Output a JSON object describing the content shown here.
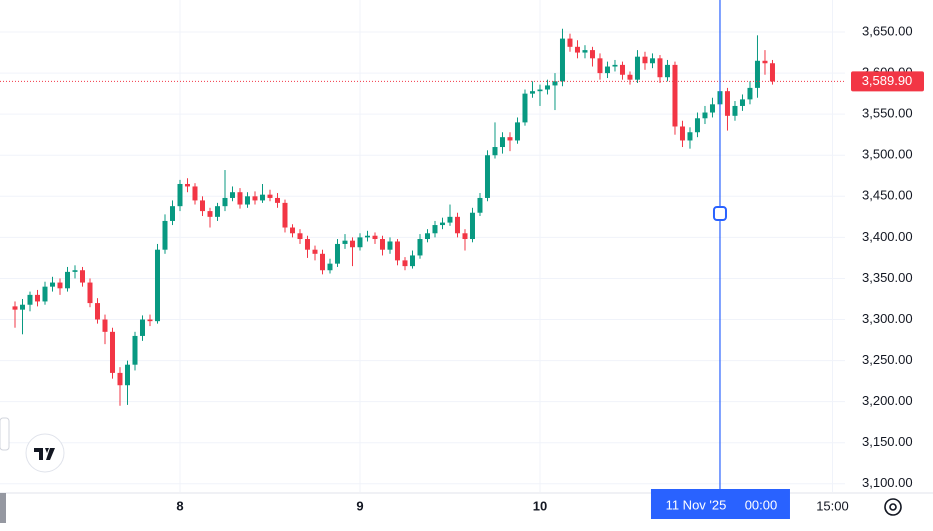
{
  "chart_data": {
    "type": "candlestick",
    "x": [
      2,
      3,
      4,
      5,
      6,
      7,
      8,
      9,
      10,
      11,
      12,
      13,
      14,
      15,
      16,
      17,
      18,
      19,
      20,
      21,
      22,
      23,
      24,
      25,
      26,
      27,
      28,
      29,
      30,
      31,
      32,
      33,
      34,
      35,
      36,
      37,
      38,
      39,
      40,
      41,
      42,
      43,
      44,
      45,
      46,
      47,
      48,
      49,
      50,
      51,
      52,
      53,
      54,
      55,
      56,
      57,
      58,
      59,
      60,
      61,
      62,
      63,
      64,
      65,
      66,
      67,
      68,
      69,
      70,
      71,
      72,
      73,
      74,
      75,
      76,
      77,
      78,
      79,
      80,
      81,
      82,
      83,
      84,
      85,
      86,
      87,
      88,
      89,
      90,
      91,
      92,
      93,
      94,
      95,
      96,
      97,
      98,
      99,
      100,
      101,
      102,
      103
    ],
    "ohlc": [
      [
        3316,
        3322,
        3290,
        3312
      ],
      [
        3312,
        3325,
        3282,
        3318
      ],
      [
        3318,
        3334,
        3310,
        3330
      ],
      [
        3330,
        3336,
        3316,
        3322
      ],
      [
        3322,
        3346,
        3318,
        3340
      ],
      [
        3340,
        3352,
        3334,
        3345
      ],
      [
        3345,
        3350,
        3330,
        3338
      ],
      [
        3338,
        3364,
        3334,
        3358
      ],
      [
        3358,
        3366,
        3350,
        3360
      ],
      [
        3360,
        3364,
        3340,
        3345
      ],
      [
        3345,
        3350,
        3315,
        3320
      ],
      [
        3320,
        3326,
        3295,
        3300
      ],
      [
        3300,
        3306,
        3270,
        3285
      ],
      [
        3285,
        3290,
        3228,
        3235
      ],
      [
        3235,
        3242,
        3195,
        3220
      ],
      [
        3220,
        3250,
        3196,
        3245
      ],
      [
        3245,
        3285,
        3238,
        3280
      ],
      [
        3280,
        3305,
        3274,
        3300
      ],
      [
        3300,
        3306,
        3292,
        3298
      ],
      [
        3298,
        3392,
        3295,
        3385
      ],
      [
        3385,
        3428,
        3380,
        3420
      ],
      [
        3420,
        3445,
        3415,
        3438
      ],
      [
        3438,
        3470,
        3432,
        3465
      ],
      [
        3465,
        3472,
        3455,
        3462
      ],
      [
        3462,
        3466,
        3440,
        3445
      ],
      [
        3445,
        3450,
        3426,
        3432
      ],
      [
        3432,
        3436,
        3412,
        3425
      ],
      [
        3425,
        3442,
        3420,
        3438
      ],
      [
        3438,
        3482,
        3432,
        3448
      ],
      [
        3448,
        3462,
        3444,
        3455
      ],
      [
        3455,
        3460,
        3435,
        3440
      ],
      [
        3440,
        3455,
        3436,
        3450
      ],
      [
        3450,
        3456,
        3440,
        3445
      ],
      [
        3445,
        3465,
        3442,
        3452
      ],
      [
        3452,
        3458,
        3444,
        3448
      ],
      [
        3448,
        3454,
        3436,
        3442
      ],
      [
        3442,
        3446,
        3406,
        3412
      ],
      [
        3412,
        3416,
        3400,
        3405
      ],
      [
        3405,
        3410,
        3392,
        3398
      ],
      [
        3398,
        3402,
        3375,
        3385
      ],
      [
        3385,
        3390,
        3372,
        3380
      ],
      [
        3380,
        3385,
        3355,
        3360
      ],
      [
        3360,
        3374,
        3356,
        3368
      ],
      [
        3368,
        3398,
        3364,
        3392
      ],
      [
        3392,
        3404,
        3386,
        3396
      ],
      [
        3396,
        3400,
        3365,
        3388
      ],
      [
        3388,
        3405,
        3384,
        3400
      ],
      [
        3400,
        3408,
        3395,
        3402
      ],
      [
        3402,
        3406,
        3392,
        3398
      ],
      [
        3398,
        3402,
        3378,
        3385
      ],
      [
        3385,
        3400,
        3380,
        3395
      ],
      [
        3395,
        3398,
        3366,
        3372
      ],
      [
        3372,
        3376,
        3360,
        3365
      ],
      [
        3365,
        3384,
        3362,
        3378
      ],
      [
        3378,
        3404,
        3374,
        3398
      ],
      [
        3398,
        3410,
        3394,
        3405
      ],
      [
        3405,
        3420,
        3400,
        3415
      ],
      [
        3415,
        3424,
        3410,
        3418
      ],
      [
        3418,
        3440,
        3414,
        3425
      ],
      [
        3425,
        3430,
        3400,
        3405
      ],
      [
        3405,
        3410,
        3384,
        3398
      ],
      [
        3398,
        3436,
        3394,
        3430
      ],
      [
        3430,
        3454,
        3426,
        3448
      ],
      [
        3448,
        3506,
        3444,
        3500
      ],
      [
        3500,
        3540,
        3496,
        3510
      ],
      [
        3510,
        3528,
        3502,
        3522
      ],
      [
        3522,
        3528,
        3505,
        3518
      ],
      [
        3518,
        3546,
        3514,
        3540
      ],
      [
        3540,
        3580,
        3536,
        3575
      ],
      [
        3575,
        3590,
        3570,
        3578
      ],
      [
        3578,
        3586,
        3560,
        3580
      ],
      [
        3580,
        3592,
        3574,
        3585
      ],
      [
        3585,
        3600,
        3555,
        3590
      ],
      [
        3590,
        3654,
        3584,
        3642
      ],
      [
        3642,
        3648,
        3626,
        3632
      ],
      [
        3632,
        3640,
        3618,
        3625
      ],
      [
        3625,
        3634,
        3618,
        3628
      ],
      [
        3628,
        3632,
        3608,
        3618
      ],
      [
        3618,
        3624,
        3592,
        3600
      ],
      [
        3600,
        3614,
        3594,
        3608
      ],
      [
        3608,
        3616,
        3602,
        3610
      ],
      [
        3610,
        3614,
        3592,
        3598
      ],
      [
        3598,
        3602,
        3586,
        3592
      ],
      [
        3592,
        3628,
        3588,
        3620
      ],
      [
        3620,
        3626,
        3604,
        3612
      ],
      [
        3612,
        3624,
        3606,
        3618
      ],
      [
        3618,
        3622,
        3588,
        3595
      ],
      [
        3595,
        3616,
        3590,
        3610
      ],
      [
        3610,
        3614,
        3525,
        3535
      ],
      [
        3535,
        3542,
        3510,
        3518
      ],
      [
        3518,
        3534,
        3508,
        3528
      ],
      [
        3528,
        3552,
        3522,
        3545
      ],
      [
        3545,
        3560,
        3538,
        3552
      ],
      [
        3552,
        3570,
        3546,
        3562
      ],
      [
        3562,
        3584,
        3556,
        3578
      ],
      [
        3578,
        3582,
        3530,
        3548
      ],
      [
        3548,
        3566,
        3542,
        3560
      ],
      [
        3560,
        3574,
        3554,
        3568
      ],
      [
        3568,
        3590,
        3562,
        3582
      ],
      [
        3582,
        3646,
        3570,
        3615
      ],
      [
        3615,
        3628,
        3598,
        3612
      ],
      [
        3612,
        3616,
        3586,
        3589.9
      ]
    ],
    "up_color": "#089981",
    "down_color": "#f23645",
    "xlim": [
      0,
      112.67
    ],
    "ylim": [
      3090,
      3689
    ],
    "xticks": [
      {
        "value": 24,
        "label": "8"
      },
      {
        "value": 48,
        "label": "9"
      },
      {
        "value": 72,
        "label": "10"
      },
      {
        "value": 111,
        "label": "15:00"
      }
    ],
    "yticks": [
      {
        "value": 3100,
        "label": "3,100.00"
      },
      {
        "value": 3150,
        "label": "3,150.00"
      },
      {
        "value": 3200,
        "label": "3,200.00"
      },
      {
        "value": 3250,
        "label": "3,250.00"
      },
      {
        "value": 3300,
        "label": "3,300.00"
      },
      {
        "value": 3350,
        "label": "3,350.00"
      },
      {
        "value": 3400,
        "label": "3,400.00"
      },
      {
        "value": 3450,
        "label": "3,450.00"
      },
      {
        "value": 3500,
        "label": "3,500.00"
      },
      {
        "value": 3550,
        "label": "3,550.00"
      },
      {
        "value": 3600,
        "label": "3,600.00"
      },
      {
        "value": 3650,
        "label": "3,650.00"
      }
    ],
    "grid": true,
    "last_price": {
      "value": 3589.9,
      "label": "3,589.90"
    },
    "crosshair": {
      "x": 96,
      "date_label": "11 Nov '25",
      "time_label": "00:00"
    }
  }
}
